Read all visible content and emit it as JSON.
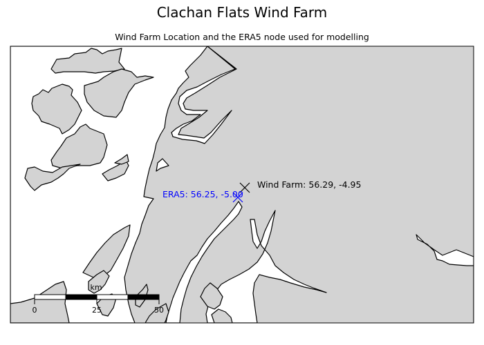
{
  "figure": {
    "title": "Clachan Flats Wind Farm",
    "subtitle": "Wind Farm Location and the ERA5 node used for modelling"
  },
  "map": {
    "land_color": "#d3d3d3",
    "sea_color": "#ffffff",
    "coastline_color": "#000000",
    "markers": [
      {
        "id": "wind-farm",
        "label": "Wind Farm: 56.29, -4.95",
        "lat": 56.29,
        "lon": -4.95,
        "symbol": "x",
        "color": "#000000"
      },
      {
        "id": "era5-node",
        "label": "ERA5: 56.25, -5.00",
        "lat": 56.25,
        "lon": -5.0,
        "symbol": "x",
        "color": "#0000ff"
      }
    ]
  },
  "scalebar": {
    "unit_label": "km",
    "ticks": [
      "0",
      "25",
      "50"
    ]
  }
}
